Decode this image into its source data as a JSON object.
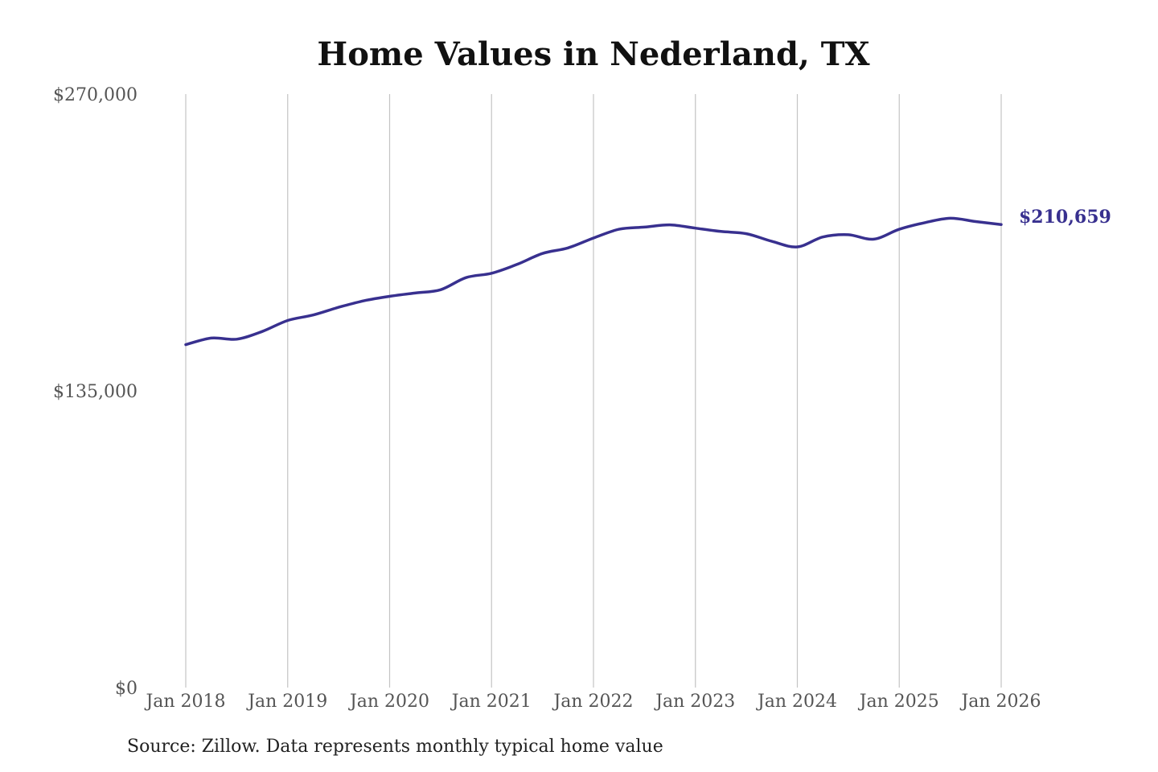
{
  "chart_data": {
    "type": "line",
    "title": "Home Values in Nederland, TX",
    "xlabel": "",
    "ylabel": "",
    "source": "Source: Zillow. Data represents monthly typical home value",
    "x_ticks": [
      "Jan 2018",
      "Jan 2019",
      "Jan 2020",
      "Jan 2021",
      "Jan 2022",
      "Jan 2023",
      "Jan 2024",
      "Jan 2025",
      "Jan 2026"
    ],
    "y_ticks": [
      {
        "value": 0,
        "label": "$0"
      },
      {
        "value": 135000,
        "label": "$135,000"
      },
      {
        "value": 270000,
        "label": "$270,000"
      }
    ],
    "ylim": [
      0,
      270000
    ],
    "xlim": [
      2018.0,
      2026.0
    ],
    "grid": "vertical",
    "line_color": "#38308f",
    "end_label": "$210,659",
    "series": [
      {
        "values": [
          {
            "x": 2018.0,
            "y": 156000
          },
          {
            "x": 2018.25,
            "y": 159000
          },
          {
            "x": 2018.5,
            "y": 158500
          },
          {
            "x": 2018.75,
            "y": 162000
          },
          {
            "x": 2019.0,
            "y": 167000
          },
          {
            "x": 2019.25,
            "y": 169500
          },
          {
            "x": 2019.5,
            "y": 173000
          },
          {
            "x": 2019.75,
            "y": 176000
          },
          {
            "x": 2020.0,
            "y": 178000
          },
          {
            "x": 2020.25,
            "y": 179500
          },
          {
            "x": 2020.5,
            "y": 181000
          },
          {
            "x": 2020.75,
            "y": 186500
          },
          {
            "x": 2021.0,
            "y": 188500
          },
          {
            "x": 2021.25,
            "y": 192500
          },
          {
            "x": 2021.5,
            "y": 197500
          },
          {
            "x": 2021.75,
            "y": 200000
          },
          {
            "x": 2022.0,
            "y": 204500
          },
          {
            "x": 2022.25,
            "y": 208500
          },
          {
            "x": 2022.5,
            "y": 209500
          },
          {
            "x": 2022.75,
            "y": 210500
          },
          {
            "x": 2023.0,
            "y": 209000
          },
          {
            "x": 2023.25,
            "y": 207500
          },
          {
            "x": 2023.5,
            "y": 206500
          },
          {
            "x": 2023.75,
            "y": 203000
          },
          {
            "x": 2024.0,
            "y": 200500
          },
          {
            "x": 2024.25,
            "y": 205000
          },
          {
            "x": 2024.5,
            "y": 206000
          },
          {
            "x": 2024.75,
            "y": 204000
          },
          {
            "x": 2025.0,
            "y": 208500
          },
          {
            "x": 2025.25,
            "y": 211500
          },
          {
            "x": 2025.5,
            "y": 213500
          },
          {
            "x": 2025.75,
            "y": 212000
          },
          {
            "x": 2026.0,
            "y": 210659
          }
        ]
      }
    ]
  }
}
